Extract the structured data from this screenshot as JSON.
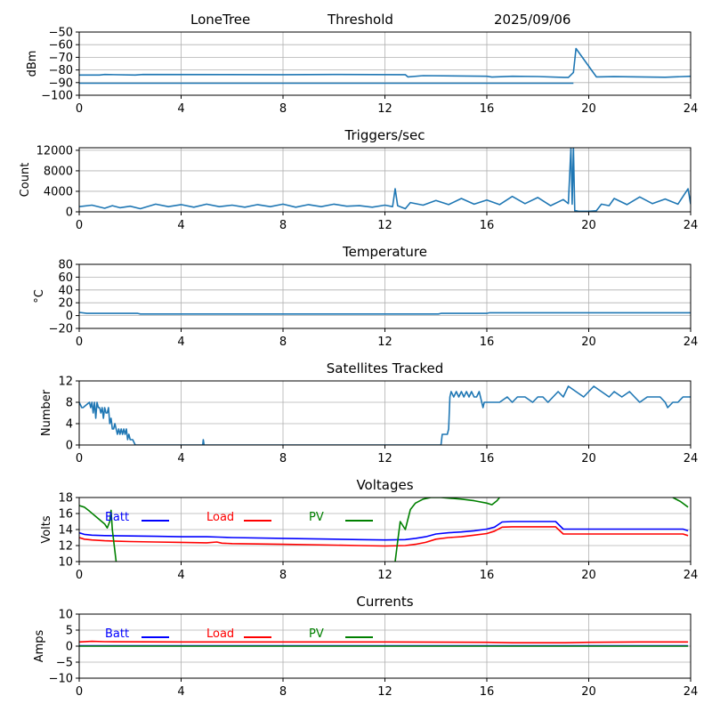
{
  "header": {
    "station": "LoneTree",
    "mode": "Threshold",
    "date": "2025/09/06"
  },
  "chart_data": [
    {
      "id": "signal",
      "type": "line",
      "title": "",
      "xlabel": "",
      "ylabel": "dBm",
      "xlim": [
        0,
        24
      ],
      "ylim": [
        -100,
        -50
      ],
      "xticks": [
        0,
        4,
        8,
        12,
        16,
        20,
        24
      ],
      "yticks": [
        -50,
        -60,
        -70,
        -80,
        -90,
        -100
      ],
      "ytick_labels": [
        "−50",
        "−60",
        "−70",
        "−80",
        "−90",
        "−100"
      ],
      "grid": true,
      "series": [
        {
          "color": "#1f77b4",
          "x": [
            0,
            0.8,
            1.0,
            2.2,
            2.5,
            8,
            10,
            12.8,
            12.9,
            13.5,
            16,
            16.2,
            17,
            18,
            19.2,
            19.4,
            19.5,
            20.3,
            21,
            22,
            23,
            24
          ],
          "y": [
            -84,
            -84,
            -83.6,
            -84,
            -83.6,
            -83.7,
            -83.6,
            -83.7,
            -85.5,
            -84.5,
            -85,
            -85.6,
            -85,
            -85.2,
            -86,
            -82,
            -63,
            -85.5,
            -85.3,
            -85.5,
            -85.8,
            -85
          ]
        },
        {
          "color": "#1f77b4",
          "x": [
            0,
            19.4
          ],
          "y": [
            -90.5,
            -90.5
          ]
        }
      ]
    },
    {
      "id": "triggers",
      "type": "line",
      "title": "Triggers/sec",
      "xlabel": "",
      "ylabel": "Count",
      "xlim": [
        0,
        24
      ],
      "ylim": [
        0,
        12500
      ],
      "xticks": [
        0,
        4,
        8,
        12,
        16,
        20,
        24
      ],
      "yticks": [
        0,
        4000,
        8000,
        12000
      ],
      "grid": true,
      "series": [
        {
          "color": "#1f77b4",
          "x": [
            0,
            0.5,
            1,
            1.3,
            1.6,
            2,
            2.4,
            3,
            3.5,
            4,
            4.5,
            5,
            5.5,
            6,
            6.5,
            7,
            7.5,
            8,
            8.5,
            9,
            9.5,
            10,
            10.5,
            11,
            11.5,
            12,
            12.3,
            12.4,
            12.5,
            12.8,
            13,
            13.5,
            14,
            14.5,
            15,
            15.5,
            16,
            16.5,
            17,
            17.5,
            18,
            18.5,
            19,
            19.2,
            19.3,
            19.35,
            19.4,
            19.45,
            19.5,
            19.6,
            19.7,
            20,
            20.3,
            20.5,
            20.8,
            21,
            21.5,
            22,
            22.5,
            23,
            23.5,
            23.9,
            24
          ],
          "y": [
            1000,
            1300,
            700,
            1200,
            800,
            1100,
            600,
            1500,
            1000,
            1400,
            900,
            1500,
            1000,
            1300,
            900,
            1400,
            1000,
            1500,
            900,
            1400,
            1000,
            1500,
            1100,
            1200,
            900,
            1300,
            1000,
            4500,
            1200,
            600,
            1800,
            1300,
            2200,
            1400,
            2600,
            1500,
            2300,
            1400,
            3000,
            1600,
            2800,
            1200,
            2400,
            1600,
            12500,
            1500,
            12500,
            200,
            200,
            100,
            100,
            100,
            200,
            1500,
            1200,
            2600,
            1400,
            2900,
            1600,
            2500,
            1500,
            4500,
            1500
          ]
        }
      ]
    },
    {
      "id": "temperature",
      "type": "line",
      "title": "Temperature",
      "xlabel": "",
      "ylabel": "°C",
      "xlim": [
        0,
        24
      ],
      "ylim": [
        -20,
        80
      ],
      "xticks": [
        0,
        4,
        8,
        12,
        16,
        20,
        24
      ],
      "yticks": [
        -20,
        0,
        20,
        40,
        60,
        80
      ],
      "ytick_labels": [
        "−20",
        "0",
        "20",
        "40",
        "60",
        "80"
      ],
      "grid": true,
      "series": [
        {
          "color": "#1f77b4",
          "x": [
            0,
            0.3,
            2.3,
            2.4,
            14.1,
            14.2,
            16,
            16.1,
            24
          ],
          "y": [
            5,
            3.5,
            3.5,
            2.5,
            2.5,
            3.5,
            3.5,
            4.5,
            4.5
          ]
        }
      ]
    },
    {
      "id": "satellites",
      "type": "line",
      "title": "Satellites Tracked",
      "xlabel": "",
      "ylabel": "Number",
      "xlim": [
        0,
        24
      ],
      "ylim": [
        0,
        12
      ],
      "xticks": [
        0,
        4,
        8,
        12,
        16,
        20,
        24
      ],
      "yticks": [
        0,
        4,
        8,
        12
      ],
      "grid": true,
      "series": [
        {
          "color": "#1f77b4",
          "x": [
            0,
            0.1,
            0.15,
            0.4,
            0.45,
            0.5,
            0.55,
            0.6,
            0.65,
            0.7,
            0.75,
            0.8,
            0.85,
            0.9,
            0.95,
            1.0,
            1.05,
            1.1,
            1.15,
            1.2,
            1.25,
            1.3,
            1.35,
            1.4,
            1.45,
            1.5,
            1.55,
            1.6,
            1.65,
            1.7,
            1.75,
            1.8,
            1.85,
            1.9,
            1.95,
            2.0,
            2.1,
            2.2,
            2.3,
            4.85,
            4.87,
            4.9,
            14.2,
            14.25,
            14.45,
            14.5,
            14.55,
            14.6,
            14.7,
            14.8,
            14.9,
            15,
            15.1,
            15.2,
            15.3,
            15.4,
            15.5,
            15.6,
            15.7,
            15.8,
            15.85,
            15.9,
            16,
            16.5,
            16.8,
            17,
            17.2,
            17.5,
            17.8,
            18,
            18.2,
            18.4,
            18.6,
            18.8,
            19,
            19.2,
            19.5,
            19.8,
            20,
            20.2,
            20.5,
            20.8,
            21,
            21.3,
            21.6,
            21.8,
            22,
            22.3,
            22.5,
            22.8,
            23,
            23.1,
            23.3,
            23.5,
            23.7,
            24
          ],
          "y": [
            8,
            7,
            7,
            8,
            7,
            8,
            6,
            8,
            5,
            8,
            7,
            7,
            6,
            7,
            5,
            7,
            6,
            6,
            7,
            4,
            5,
            3,
            3,
            4,
            3,
            2,
            3,
            2,
            3,
            2,
            3,
            2,
            3,
            1,
            2,
            1,
            1,
            0,
            0,
            0,
            1,
            0,
            0,
            2,
            2,
            3,
            9,
            10,
            9,
            10,
            9,
            10,
            9,
            10,
            9,
            10,
            9,
            9,
            10,
            8,
            7,
            8,
            8,
            8,
            9,
            8,
            9,
            9,
            8,
            9,
            9,
            8,
            9,
            10,
            9,
            11,
            10,
            9,
            10,
            11,
            10,
            9,
            10,
            9,
            10,
            9,
            8,
            9,
            9,
            9,
            8,
            7,
            8,
            8,
            9,
            9
          ]
        }
      ]
    },
    {
      "id": "voltages",
      "type": "line",
      "title": "Voltages",
      "xlabel": "",
      "ylabel": "Volts",
      "xlim": [
        0,
        24
      ],
      "ylim": [
        10,
        18
      ],
      "xticks": [
        0,
        4,
        8,
        12,
        16,
        20,
        24
      ],
      "yticks": [
        10,
        12,
        14,
        16,
        18
      ],
      "grid": true,
      "series": [
        {
          "name": "Batt",
          "color": "#0000ff",
          "x": [
            0,
            0.2,
            0.5,
            1,
            2,
            3,
            4,
            5,
            5.5,
            6,
            8,
            10,
            11,
            12,
            12.8,
            13.2,
            13.6,
            14,
            14.5,
            15,
            15.5,
            16,
            16.3,
            16.6,
            17,
            18,
            18.7,
            19,
            20,
            21,
            22,
            23,
            23.7,
            23.9
          ],
          "y": [
            13.6,
            13.4,
            13.3,
            13.25,
            13.2,
            13.15,
            13.1,
            13.1,
            13.05,
            13.0,
            12.9,
            12.8,
            12.75,
            12.7,
            12.75,
            12.9,
            13.1,
            13.45,
            13.6,
            13.7,
            13.85,
            14.05,
            14.3,
            14.95,
            15.0,
            15.0,
            15.0,
            14.05,
            14.05,
            14.05,
            14.05,
            14.05,
            14.05,
            13.85
          ]
        },
        {
          "name": "Load",
          "color": "#ff0000",
          "x": [
            0,
            0.2,
            0.5,
            1,
            2,
            3,
            4,
            5,
            5.4,
            5.6,
            6,
            8,
            10,
            11,
            12,
            12.8,
            13.2,
            13.6,
            14,
            14.5,
            15,
            15.5,
            16,
            16.3,
            16.6,
            17,
            18,
            18.7,
            19,
            20,
            21,
            22,
            23,
            23.7,
            23.9
          ],
          "y": [
            13.0,
            12.8,
            12.7,
            12.6,
            12.5,
            12.45,
            12.4,
            12.35,
            12.45,
            12.3,
            12.25,
            12.15,
            12.05,
            12.0,
            11.95,
            12.0,
            12.15,
            12.4,
            12.8,
            13.0,
            13.1,
            13.3,
            13.5,
            13.8,
            14.3,
            14.35,
            14.35,
            14.35,
            13.45,
            13.45,
            13.45,
            13.45,
            13.45,
            13.45,
            13.25
          ]
        },
        {
          "name": "PV",
          "color": "#008000",
          "x": [
            0,
            0.2,
            0.4,
            0.7,
            1.0,
            1.1,
            1.2,
            1.25,
            1.3,
            1.45,
            null,
            12.4,
            12.5,
            12.6,
            12.8,
            13.0,
            13.2,
            13.5,
            13.8,
            14.2,
            14.6,
            15.0,
            15.5,
            16.0,
            16.2,
            16.4,
            16.5,
            null,
            23.3,
            23.6,
            23.9
          ],
          "y": [
            17.0,
            16.8,
            16.3,
            15.5,
            14.7,
            14.2,
            15.0,
            16.4,
            14.0,
            10.0,
            null,
            10.0,
            12.5,
            15.0,
            14.0,
            16.5,
            17.3,
            17.8,
            18.0,
            18.0,
            17.9,
            17.8,
            17.6,
            17.3,
            17.1,
            17.6,
            18.0,
            null,
            18.0,
            17.5,
            16.8
          ]
        }
      ],
      "legend": [
        "Batt",
        "Load",
        "PV"
      ]
    },
    {
      "id": "currents",
      "type": "line",
      "title": "Currents",
      "xlabel": "",
      "ylabel": "Amps",
      "xlim": [
        0,
        24
      ],
      "ylim": [
        -10,
        10
      ],
      "xticks": [
        0,
        4,
        8,
        12,
        16,
        20,
        24
      ],
      "yticks": [
        -10,
        -5,
        0,
        5,
        10
      ],
      "ytick_labels": [
        "−10",
        "−5",
        "0",
        "5",
        "10"
      ],
      "grid": true,
      "series": [
        {
          "name": "Batt",
          "color": "#0000ff",
          "x": [
            0,
            23.9
          ],
          "y": [
            0.1,
            0.1
          ]
        },
        {
          "name": "Load",
          "color": "#ff0000",
          "x": [
            0,
            0.5,
            1,
            4,
            8,
            12,
            16,
            17,
            19,
            20,
            22,
            23.9
          ],
          "y": [
            1.3,
            1.5,
            1.4,
            1.3,
            1.3,
            1.3,
            1.2,
            1.05,
            1.05,
            1.2,
            1.3,
            1.3
          ]
        },
        {
          "name": "PV",
          "color": "#008000",
          "x": [
            0,
            23.9
          ],
          "y": [
            0,
            0
          ]
        }
      ],
      "legend": [
        "Batt",
        "Load",
        "PV"
      ]
    }
  ]
}
